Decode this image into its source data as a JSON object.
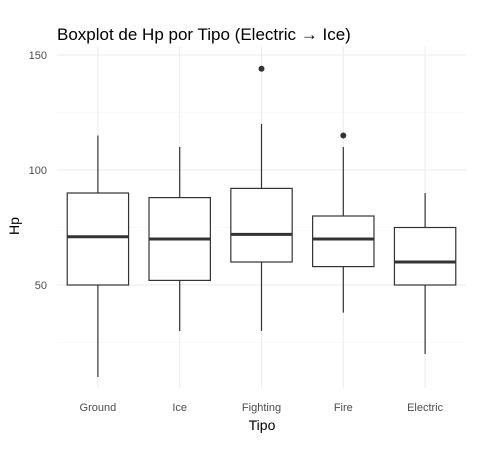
{
  "chart_data": {
    "type": "boxplot",
    "title": "Boxplot de Hp por Tipo (Electric → Ice)",
    "xlabel": "Tipo",
    "ylabel": "Hp",
    "ylim": [
      0,
      150
    ],
    "y_ticks": [
      50,
      100,
      150
    ],
    "grid": true,
    "categories": [
      "Ground",
      "Ice",
      "Fighting",
      "Fire",
      "Electric"
    ],
    "boxes": [
      {
        "category": "Ground",
        "min": 10,
        "q1": 50,
        "median": 71,
        "q3": 90,
        "max": 115,
        "outliers": []
      },
      {
        "category": "Ice",
        "min": 30,
        "q1": 52,
        "median": 70,
        "q3": 88,
        "max": 110,
        "outliers": []
      },
      {
        "category": "Fighting",
        "min": 30,
        "q1": 60,
        "median": 72,
        "q3": 92,
        "max": 120,
        "outliers": [
          144
        ]
      },
      {
        "category": "Fire",
        "min": 38,
        "q1": 58,
        "median": 70,
        "q3": 80,
        "max": 110,
        "outliers": [
          115
        ]
      },
      {
        "category": "Electric",
        "min": 20,
        "q1": 50,
        "median": 60,
        "q3": 75,
        "max": 90,
        "outliers": []
      }
    ],
    "colors": {
      "box_line": "#333333",
      "box_fill": "#ffffff",
      "grid": "#ebebeb"
    }
  }
}
